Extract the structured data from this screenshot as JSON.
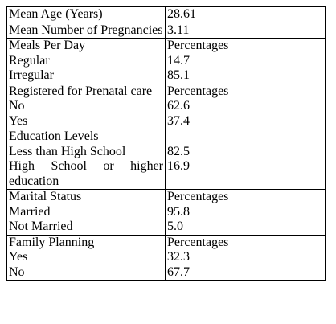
{
  "table": {
    "groups": [
      [
        [
          "Mean Age (Years)",
          "28.61"
        ]
      ],
      [
        [
          "Mean Number of Pregnancies",
          "3.11"
        ]
      ],
      [
        [
          "Meals Per Day",
          "Percentages"
        ],
        [
          "Regular",
          "14.7"
        ],
        [
          "Irregular",
          "85.1"
        ]
      ],
      [
        [
          "Registered for Prenatal care",
          "Percentages"
        ],
        [
          "No",
          "62.6"
        ],
        [
          "Yes",
          "37.4"
        ]
      ],
      [
        [
          "Education Levels",
          null
        ],
        [
          "Less than High School",
          "82.5"
        ],
        [
          "High School or higher education",
          "16.9"
        ]
      ],
      [
        [
          "Marital Status",
          "Percentages"
        ],
        [
          "Married",
          "95.8"
        ],
        [
          "Not Married",
          "5.0"
        ]
      ],
      [
        [
          "Family Planning",
          "Percentages"
        ],
        [
          "Yes",
          "32.3"
        ],
        [
          "No",
          "67.7"
        ]
      ]
    ]
  }
}
